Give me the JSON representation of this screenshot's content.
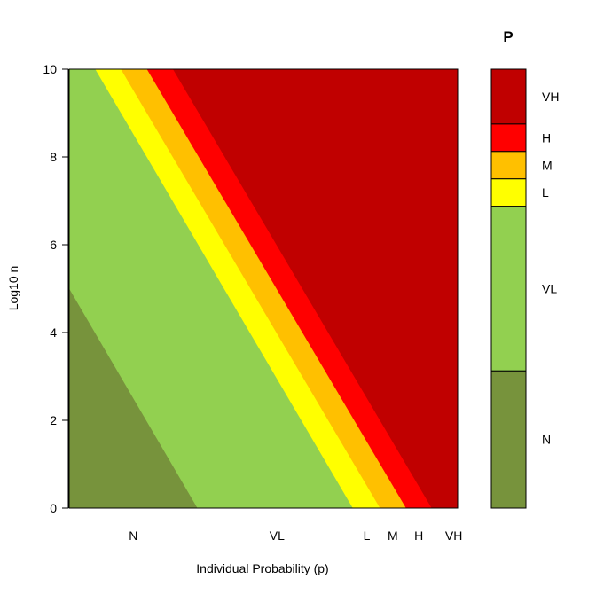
{
  "chart_data": {
    "type": "area",
    "xlabel": "Individual Probability (p)",
    "ylabel": "Log10 n",
    "ylim": [
      0,
      10
    ],
    "yticks": [
      0,
      2,
      4,
      6,
      8,
      10
    ],
    "x_categories": [
      "N",
      "VL",
      "L",
      "M",
      "H",
      "VH"
    ],
    "grid": false,
    "legend_position": "right",
    "colors": {
      "N": "#77933c",
      "VL": "#92d050",
      "L": "#ffff00",
      "M": "#ffc000",
      "H": "#ff0000",
      "VH": "#c00000"
    },
    "regions": [
      {
        "name": "N",
        "boundary_bottom_x": 0.33,
        "boundary_top_x": -0.33
      },
      {
        "name": "VL",
        "boundary_bottom_x": 0.73,
        "boundary_top_x": 0.067
      },
      {
        "name": "L",
        "boundary_bottom_x": 0.8,
        "boundary_top_x": 0.133
      },
      {
        "name": "M",
        "boundary_bottom_x": 0.867,
        "boundary_top_x": 0.2
      },
      {
        "name": "H",
        "boundary_bottom_x": 0.933,
        "boundary_top_x": 0.267
      }
    ],
    "legend": {
      "title": "P",
      "entries": [
        {
          "label": "VH",
          "color": "#c00000",
          "fraction": 0.125
        },
        {
          "label": "H",
          "color": "#ff0000",
          "fraction": 0.0625
        },
        {
          "label": "M",
          "color": "#ffc000",
          "fraction": 0.0625
        },
        {
          "label": "L",
          "color": "#ffff00",
          "fraction": 0.0625
        },
        {
          "label": "VL",
          "color": "#92d050",
          "fraction": 0.375
        },
        {
          "label": "N",
          "color": "#77933c",
          "fraction": 0.3125
        }
      ]
    }
  }
}
